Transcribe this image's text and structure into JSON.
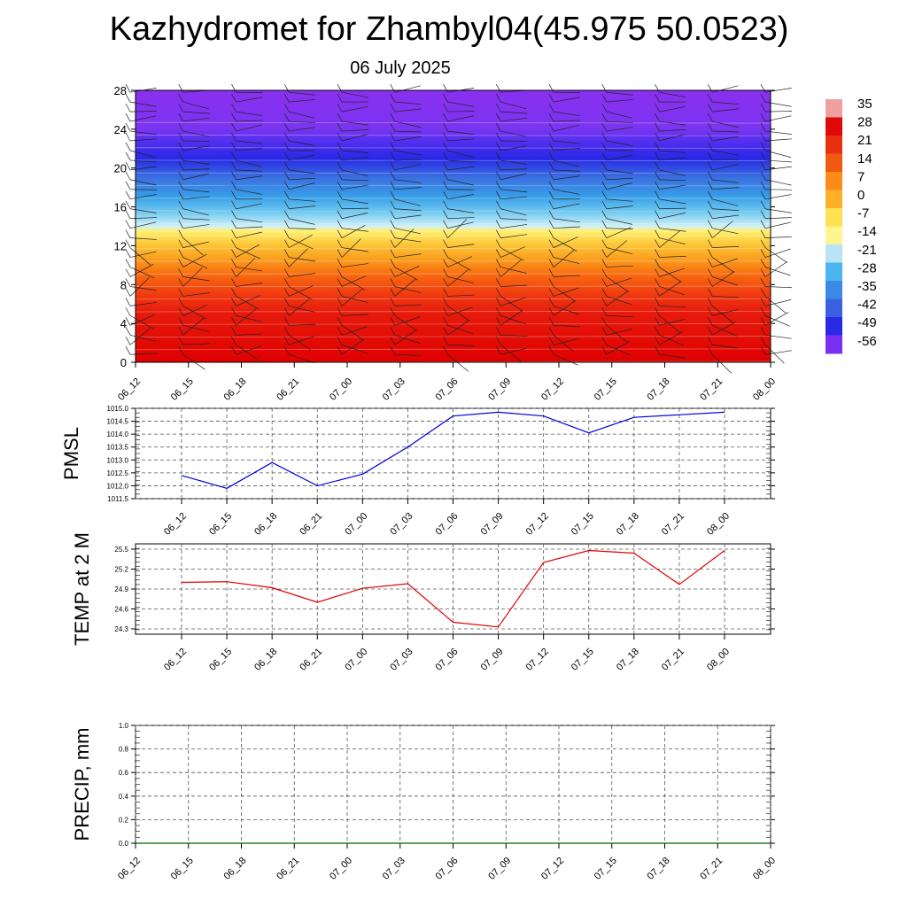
{
  "title": "Kazhydromet for Zhambyl04(45.975 50.0523)",
  "subtitle": "06 July 2025",
  "chart_data": [
    {
      "type": "heatmap",
      "name": "temperature-cross-section",
      "x": [
        "06_12",
        "06_15",
        "06_18",
        "06_21",
        "07_00",
        "07_03",
        "07_06",
        "07_09",
        "07_12",
        "07_15",
        "07_18",
        "07_21",
        "08_00"
      ],
      "yticks": [
        0,
        4,
        8,
        12,
        16,
        20,
        24,
        28
      ],
      "ylim": [
        0,
        28
      ],
      "colorbar_labels": [
        "35",
        "28",
        "21",
        "14",
        "7",
        "0",
        "-7",
        "-14",
        "-21",
        "-28",
        "-35",
        "-42",
        "-49",
        "-56"
      ],
      "color_stops": [
        {
          "h": 0,
          "c": "#e00000"
        },
        {
          "h": 5,
          "c": "#e61a0c"
        },
        {
          "h": 7,
          "c": "#f03a10"
        },
        {
          "h": 9,
          "c": "#f86a10"
        },
        {
          "h": 10.5,
          "c": "#fb9a1c"
        },
        {
          "h": 12,
          "c": "#fcc234"
        },
        {
          "h": 13.5,
          "c": "#fff070"
        },
        {
          "h": 14,
          "c": "#d0f0f8"
        },
        {
          "h": 15.5,
          "c": "#70c8f0"
        },
        {
          "h": 17,
          "c": "#38a0e8"
        },
        {
          "h": 19,
          "c": "#3a70e0"
        },
        {
          "h": 21,
          "c": "#2828e6"
        },
        {
          "h": 23,
          "c": "#5a30f0"
        },
        {
          "h": 24,
          "c": "#7a34f0"
        },
        {
          "h": 28,
          "c": "#8a30f0"
        }
      ],
      "colorbar_colors": [
        "#f0a0a0",
        "#e00808",
        "#e83010",
        "#f05a10",
        "#fb8c18",
        "#fcb028",
        "#fde150",
        "#fff590",
        "#b8e4f6",
        "#4cb4ee",
        "#3a8ae6",
        "#3a62e0",
        "#2a2ae6",
        "#7a30f0"
      ]
    },
    {
      "type": "line",
      "name": "pmsl",
      "ylabel": "PMSL",
      "x": [
        "06_12",
        "06_15",
        "06_18",
        "06_21",
        "07_00",
        "07_03",
        "07_06",
        "07_09",
        "07_12",
        "07_15",
        "07_18",
        "07_21",
        "08_00"
      ],
      "values": [
        1012.4,
        1011.9,
        1012.9,
        1012.0,
        1012.45,
        1013.5,
        1014.7,
        1014.85,
        1014.7,
        1014.05,
        1014.65,
        1014.75,
        1014.85
      ],
      "yticks": [
        "1011.5",
        "1012.0",
        "1012.5",
        "1013.0",
        "1013.5",
        "1014.0",
        "1014.5",
        "1015.0"
      ],
      "ylim": [
        1011.5,
        1015.0
      ],
      "color": "#0000dd",
      "grid": true
    },
    {
      "type": "line",
      "name": "temp-2m",
      "ylabel": "TEMP at 2 M",
      "x": [
        "06_12",
        "06_15",
        "06_18",
        "06_21",
        "07_00",
        "07_03",
        "07_06",
        "07_09",
        "07_12",
        "07_15",
        "07_18",
        "07_21",
        "08_00"
      ],
      "values": [
        25.0,
        25.01,
        24.92,
        24.7,
        24.91,
        24.98,
        24.4,
        24.33,
        25.3,
        25.48,
        25.44,
        24.97,
        25.48
      ],
      "yticks": [
        "24.3",
        "24.6",
        "24.9",
        "25.2",
        "25.5"
      ],
      "ylim": [
        24.22,
        25.58
      ],
      "color": "#e00000",
      "grid": true
    },
    {
      "type": "line",
      "name": "precip",
      "ylabel": "PRECIP, mm",
      "x": [
        "06_12",
        "06_15",
        "06_18",
        "06_21",
        "07_00",
        "07_03",
        "07_06",
        "07_09",
        "07_12",
        "07_15",
        "07_18",
        "07_21",
        "08_00"
      ],
      "values": [
        0,
        0,
        0,
        0,
        0,
        0,
        0,
        0,
        0,
        0,
        0,
        0,
        0
      ],
      "yticks": [
        "0.0",
        "0.2",
        "0.4",
        "0.6",
        "0.8",
        "1.0"
      ],
      "ylim": [
        0,
        1.0
      ],
      "color": "#006400",
      "grid": true
    }
  ]
}
